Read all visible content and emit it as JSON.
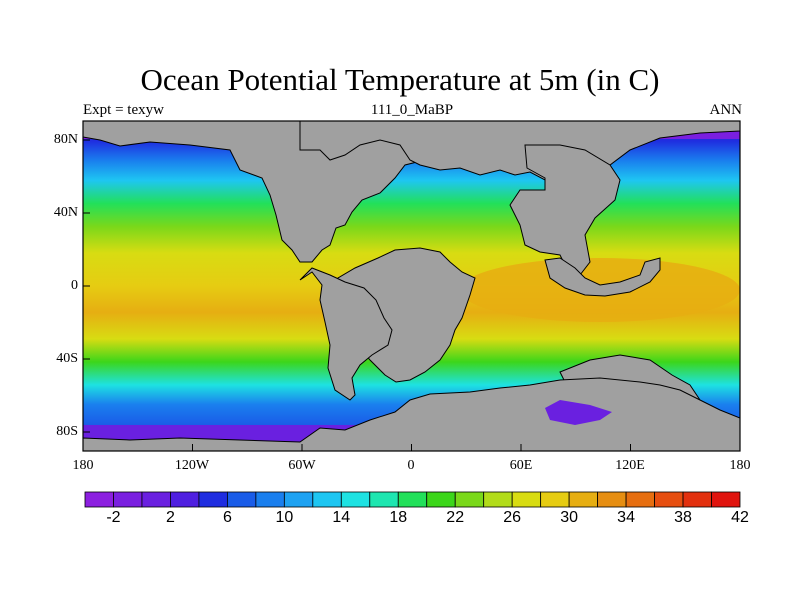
{
  "title": "Ocean Potential Temperature at 5m (in C)",
  "subtitle_left": "Expt = texyw",
  "subtitle_center": "111_0_MaBP",
  "subtitle_right": "ANN",
  "y_ticks": [
    "80N",
    "40N",
    "0",
    "40S",
    "80S"
  ],
  "x_ticks": [
    "180",
    "120W",
    "60W",
    "0",
    "60E",
    "120E",
    "180"
  ],
  "colorbar": {
    "labels": [
      "-2",
      "2",
      "6",
      "10",
      "14",
      "18",
      "22",
      "26",
      "30",
      "34",
      "38",
      "42"
    ],
    "colors": [
      "#8c1fe0",
      "#7a1fe0",
      "#6a20e0",
      "#4f1fe0",
      "#1f2de0",
      "#1a5ce8",
      "#1a7fee",
      "#1ea2f2",
      "#1ec6f2",
      "#1ee2e2",
      "#1ee6b0",
      "#22e05a",
      "#3cd61a",
      "#7ad81a",
      "#b2dc1a",
      "#d8dc12",
      "#e6cc12",
      "#e6ae12",
      "#e68e12",
      "#e66e10",
      "#e64e10",
      "#e2300e",
      "#e0140e"
    ]
  },
  "colors": {
    "land": "#a0a0a0",
    "coastline": "#000000"
  }
}
